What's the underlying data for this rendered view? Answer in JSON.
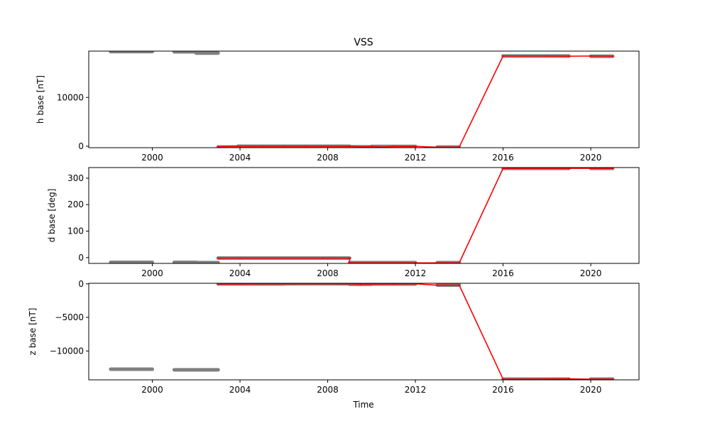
{
  "figure": {
    "title": "VSS",
    "xlabel": "Time"
  },
  "chart_data": [
    {
      "type": "line",
      "title": "VSS",
      "xlabel": "",
      "ylabel": "h base [nT]",
      "xlim": [
        1997.1,
        2022.2
      ],
      "ylim": [
        -300,
        19500
      ],
      "xticks": [
        2000,
        2004,
        2008,
        2012,
        2016,
        2020
      ],
      "yticks": [
        0,
        10000
      ],
      "grid": false,
      "series": [
        {
          "kind": "scatter",
          "color": "#808080",
          "segments": [
            [
              [
                1998.1,
                19400
              ],
              [
                2000.0,
                19400
              ]
            ],
            [
              [
                2001.0,
                19350
              ],
              [
                2002.0,
                19350
              ]
            ],
            [
              [
                2002.0,
                19100
              ],
              [
                2003.0,
                19100
              ]
            ],
            [
              [
                2003.0,
                -150
              ],
              [
                2003.9,
                -150
              ]
            ],
            [
              [
                2003.9,
                -10
              ],
              [
                2009.0,
                -10
              ]
            ],
            [
              [
                2009.0,
                -120
              ],
              [
                2010.0,
                -120
              ]
            ],
            [
              [
                2010.0,
                -50
              ],
              [
                2012.0,
                -50
              ]
            ],
            [
              [
                2013.0,
                -180
              ],
              [
                2014.0,
                -180
              ]
            ],
            [
              [
                2016.0,
                18500
              ],
              [
                2019.0,
                18500
              ]
            ],
            [
              [
                2020.0,
                18450
              ],
              [
                2021.0,
                18450
              ]
            ]
          ]
        },
        {
          "kind": "line",
          "color": "#ff0000",
          "points": [
            [
              2003.0,
              -100
            ],
            [
              2004.0,
              -10
            ],
            [
              2005.0,
              0
            ],
            [
              2006.0,
              0
            ],
            [
              2007.0,
              0
            ],
            [
              2008.0,
              0
            ],
            [
              2009.0,
              -20
            ],
            [
              2009.7,
              -150
            ],
            [
              2010.0,
              -60
            ],
            [
              2010.5,
              -180
            ],
            [
              2011.0,
              -40
            ],
            [
              2012.0,
              -30
            ],
            [
              2013.0,
              -200
            ],
            [
              2014.0,
              -160
            ],
            [
              2016.0,
              18500
            ],
            [
              2017.0,
              18500
            ],
            [
              2018.0,
              18500
            ],
            [
              2019.0,
              18450
            ],
            [
              2020.0,
              18500
            ],
            [
              2021.0,
              18450
            ]
          ]
        }
      ]
    },
    {
      "type": "line",
      "title": "",
      "xlabel": "",
      "ylabel": "d base [deg]",
      "xlim": [
        1997.1,
        2022.2
      ],
      "ylim": [
        -22,
        340
      ],
      "xticks": [
        2000,
        2004,
        2008,
        2012,
        2016,
        2020
      ],
      "yticks": [
        0,
        100,
        200,
        300
      ],
      "grid": false,
      "series": [
        {
          "kind": "scatter",
          "color": "#808080",
          "segments": [
            [
              [
                1998.1,
                -18
              ],
              [
                2000.0,
                -18
              ]
            ],
            [
              [
                2001.0,
                -18
              ],
              [
                2002.0,
                -18
              ]
            ],
            [
              [
                2002.0,
                -19
              ],
              [
                2003.0,
                -19
              ]
            ],
            [
              [
                2003.0,
                -2
              ],
              [
                2009.0,
                -2
              ]
            ],
            [
              [
                2009.0,
                -19
              ],
              [
                2012.0,
                -19
              ]
            ],
            [
              [
                2013.0,
                -19
              ],
              [
                2014.0,
                -19
              ]
            ],
            [
              [
                2016.0,
                337
              ],
              [
                2019.0,
                337
              ]
            ],
            [
              [
                2020.0,
                337
              ],
              [
                2021.0,
                337
              ]
            ]
          ]
        },
        {
          "kind": "line",
          "color": "#ff0000",
          "points": [
            [
              2003.0,
              -2
            ],
            [
              2009.0,
              -2
            ],
            [
              2009.0,
              -20
            ],
            [
              2012.0,
              -20
            ],
            [
              2014.0,
              -20
            ],
            [
              2016.0,
              337
            ],
            [
              2019.0,
              337
            ],
            [
              2021.0,
              337
            ]
          ]
        }
      ]
    },
    {
      "type": "line",
      "title": "",
      "xlabel": "Time",
      "ylabel": "z base [nT]",
      "xlim": [
        1997.1,
        2022.2
      ],
      "ylim": [
        -14300,
        80
      ],
      "xticks": [
        2000,
        2004,
        2008,
        2012,
        2016,
        2020
      ],
      "yticks": [
        0,
        -5000,
        -10000
      ],
      "grid": false,
      "series": [
        {
          "kind": "scatter",
          "color": "#808080",
          "segments": [
            [
              [
                1998.1,
                -12720
              ],
              [
                2000.0,
                -12720
              ]
            ],
            [
              [
                2001.0,
                -12810
              ],
              [
                2002.0,
                -12810
              ]
            ],
            [
              [
                2002.0,
                -12800
              ],
              [
                2003.0,
                -12800
              ]
            ],
            [
              [
                2003.0,
                -10
              ],
              [
                2006.0,
                -10
              ]
            ],
            [
              [
                2006.0,
                20
              ],
              [
                2009.0,
                20
              ]
            ],
            [
              [
                2009.0,
                -60
              ],
              [
                2010.0,
                -60
              ]
            ],
            [
              [
                2010.0,
                -20
              ],
              [
                2012.0,
                -20
              ]
            ],
            [
              [
                2013.0,
                -180
              ],
              [
                2014.0,
                -180
              ]
            ],
            [
              [
                2016.0,
                -14200
              ],
              [
                2019.0,
                -14200
              ]
            ],
            [
              [
                2020.0,
                -14200
              ],
              [
                2021.0,
                -14200
              ]
            ]
          ]
        },
        {
          "kind": "line",
          "color": "#ff0000",
          "points": [
            [
              2003.0,
              -30
            ],
            [
              2004.0,
              -20
            ],
            [
              2005.0,
              -10
            ],
            [
              2006.0,
              10
            ],
            [
              2007.0,
              20
            ],
            [
              2008.0,
              20
            ],
            [
              2009.0,
              0
            ],
            [
              2009.5,
              -80
            ],
            [
              2010.0,
              -30
            ],
            [
              2011.0,
              -20
            ],
            [
              2012.0,
              0
            ],
            [
              2013.0,
              -200
            ],
            [
              2014.0,
              -200
            ],
            [
              2016.0,
              -14200
            ],
            [
              2017.0,
              -14200
            ],
            [
              2019.0,
              -14150
            ],
            [
              2020.0,
              -14200
            ],
            [
              2021.0,
              -14200
            ]
          ]
        }
      ]
    }
  ]
}
